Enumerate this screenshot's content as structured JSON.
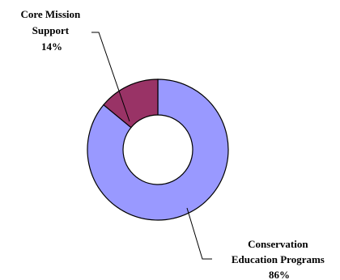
{
  "chart_data": {
    "type": "pie",
    "donut": true,
    "slices": [
      {
        "label_lines": [
          "Conservation",
          "Education Programs"
        ],
        "value": 86,
        "value_label": "86%",
        "color": "#9999ff"
      },
      {
        "label_lines": [
          "Core Mission",
          "Support"
        ],
        "value": 14,
        "value_label": "14%",
        "color": "#993366"
      }
    ],
    "start_angle_deg": 0,
    "direction": "clockwise",
    "edge_color": "#000000",
    "legend": "none"
  }
}
